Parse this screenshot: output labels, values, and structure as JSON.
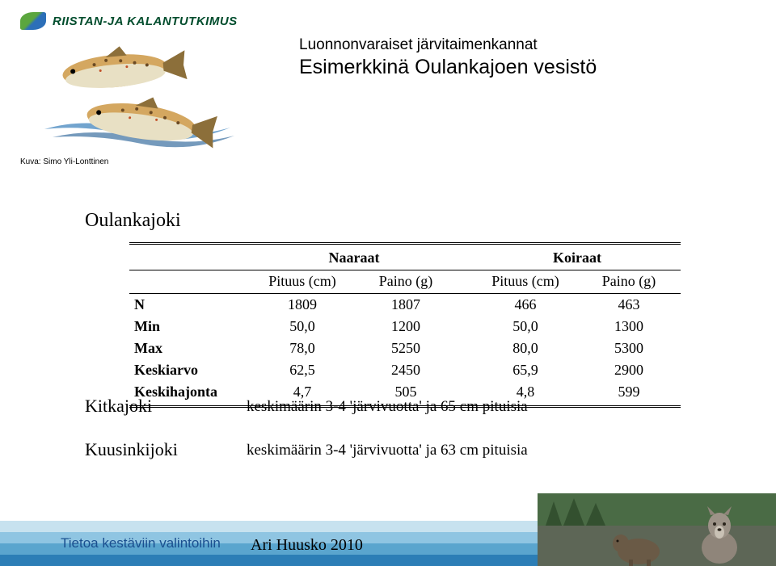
{
  "brand": "RIISTAN-JA KALANTUTKIMUS",
  "image_caption": "Kuva: Simo Yli-Lonttinen",
  "title": {
    "line1": "Luonnonvaraiset järvitaimenkannat",
    "line2": "Esimerkkinä Oulankajoen vesistö"
  },
  "river": "Oulankajoki",
  "table": {
    "group_headers": [
      "Naaraat",
      "Koiraat"
    ],
    "col_headers": [
      "Pituus (cm)",
      "Paino (g)",
      "Pituus (cm)",
      "Paino (g)"
    ],
    "rows": [
      {
        "label": "N",
        "vals": [
          "1809",
          "1807",
          "466",
          "463"
        ]
      },
      {
        "label": "Min",
        "vals": [
          "50,0",
          "1200",
          "50,0",
          "1300"
        ]
      },
      {
        "label": "Max",
        "vals": [
          "78,0",
          "5250",
          "80,0",
          "5300"
        ]
      },
      {
        "label": "Keskiarvo",
        "vals": [
          "62,5",
          "2450",
          "65,9",
          "2900"
        ]
      },
      {
        "label": "Keskihajonta",
        "vals": [
          "4,7",
          "505",
          "4,8",
          "599"
        ]
      }
    ]
  },
  "summaries": [
    {
      "label": "Kitkajoki",
      "text": "keskimäärin 3-4 'järvivuotta' ja 65 cm pituisia"
    },
    {
      "label": "Kuusinkijoki",
      "text": "keskimäärin 3-4 'järvivuotta' ja 63 cm pituisia"
    }
  ],
  "footer": {
    "left": "Tietoa kestäviin valintoihin",
    "center": "Ari Huusko 2010"
  },
  "colors": {
    "logo_green": "#014d2d",
    "footer_text": "#1a4f8f",
    "stripe1": "#c7e2ef",
    "stripe2": "#8fc5e2",
    "stripe3": "#5aa5ce",
    "stripe4": "#2c7eb6",
    "fish_body": "#d4a760",
    "fish_belly": "#e8e0c4",
    "fish_fin": "#8c6f3a",
    "water_wave": "#4f8dc2",
    "wolf": "#8f857a",
    "forest": "#4a6b45"
  }
}
